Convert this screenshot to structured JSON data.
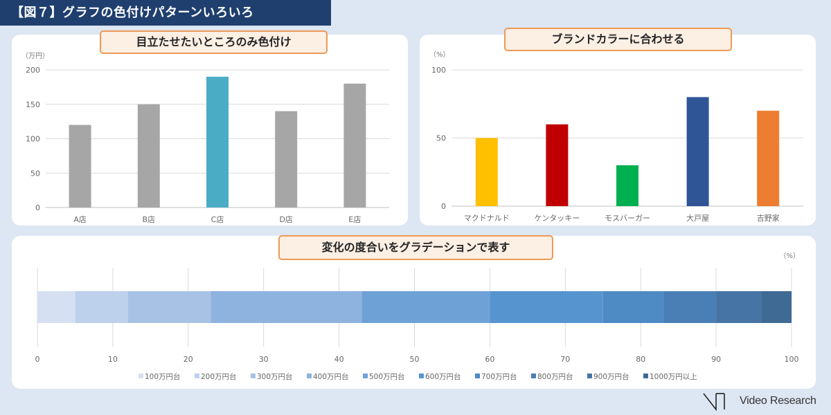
{
  "header": {
    "title": "【図７】グラフの色付けパターンいろいろ"
  },
  "chart_data": [
    {
      "type": "bar",
      "title": "目立たせたいところのみ色付け",
      "ylabel": "（万円）",
      "categories": [
        "A店",
        "B店",
        "C店",
        "D店",
        "E店"
      ],
      "values": [
        120,
        150,
        190,
        140,
        180
      ],
      "colors": [
        "#a6a6a6",
        "#a6a6a6",
        "#4bacc6",
        "#a6a6a6",
        "#a6a6a6"
      ],
      "ylim": [
        0,
        200
      ],
      "yticks": [
        "0",
        "50",
        "100",
        "150",
        "200"
      ],
      "grid": true
    },
    {
      "type": "bar",
      "title": "ブランドカラーに合わせる",
      "ylabel": "（%）",
      "categories": [
        "マクドナルド",
        "ケンタッキー",
        "モスバーガー",
        "大戸屋",
        "吉野家"
      ],
      "values": [
        50,
        60,
        30,
        80,
        70
      ],
      "colors": [
        "#ffc000",
        "#c00000",
        "#00b050",
        "#2f5597",
        "#ed7d31"
      ],
      "ylim": [
        0,
        100
      ],
      "yticks": [
        "0",
        "50",
        "100"
      ],
      "grid": true
    },
    {
      "type": "bar",
      "orientation": "horizontal-stacked",
      "title": "変化の度合いをグラデーションで表す",
      "xlabel": "（%）",
      "xlim": [
        0,
        100
      ],
      "xticks": [
        "0",
        "10",
        "20",
        "30",
        "40",
        "50",
        "60",
        "70",
        "80",
        "90",
        "100"
      ],
      "series": [
        {
          "name": "100万円台",
          "value": 5,
          "color": "#d5e1f2"
        },
        {
          "name": "200万円台",
          "value": 7,
          "color": "#bdd1ec"
        },
        {
          "name": "300万円台",
          "value": 11,
          "color": "#a8c2e5"
        },
        {
          "name": "400万円台",
          "value": 20,
          "color": "#8fb3df"
        },
        {
          "name": "500万円台",
          "value": 17,
          "color": "#6ea2d7"
        },
        {
          "name": "600万円台",
          "value": 15,
          "color": "#5694d0"
        },
        {
          "name": "700万円台",
          "value": 8,
          "color": "#4e8ac4"
        },
        {
          "name": "800万円台",
          "value": 7,
          "color": "#4a7fb5"
        },
        {
          "name": "900万円台",
          "value": 6,
          "color": "#4674a4"
        },
        {
          "name": "1000万円以上",
          "value": 4,
          "color": "#3e6a94"
        }
      ],
      "legend": "bottom",
      "grid": true
    }
  ],
  "logo": {
    "text": "Video Research"
  }
}
